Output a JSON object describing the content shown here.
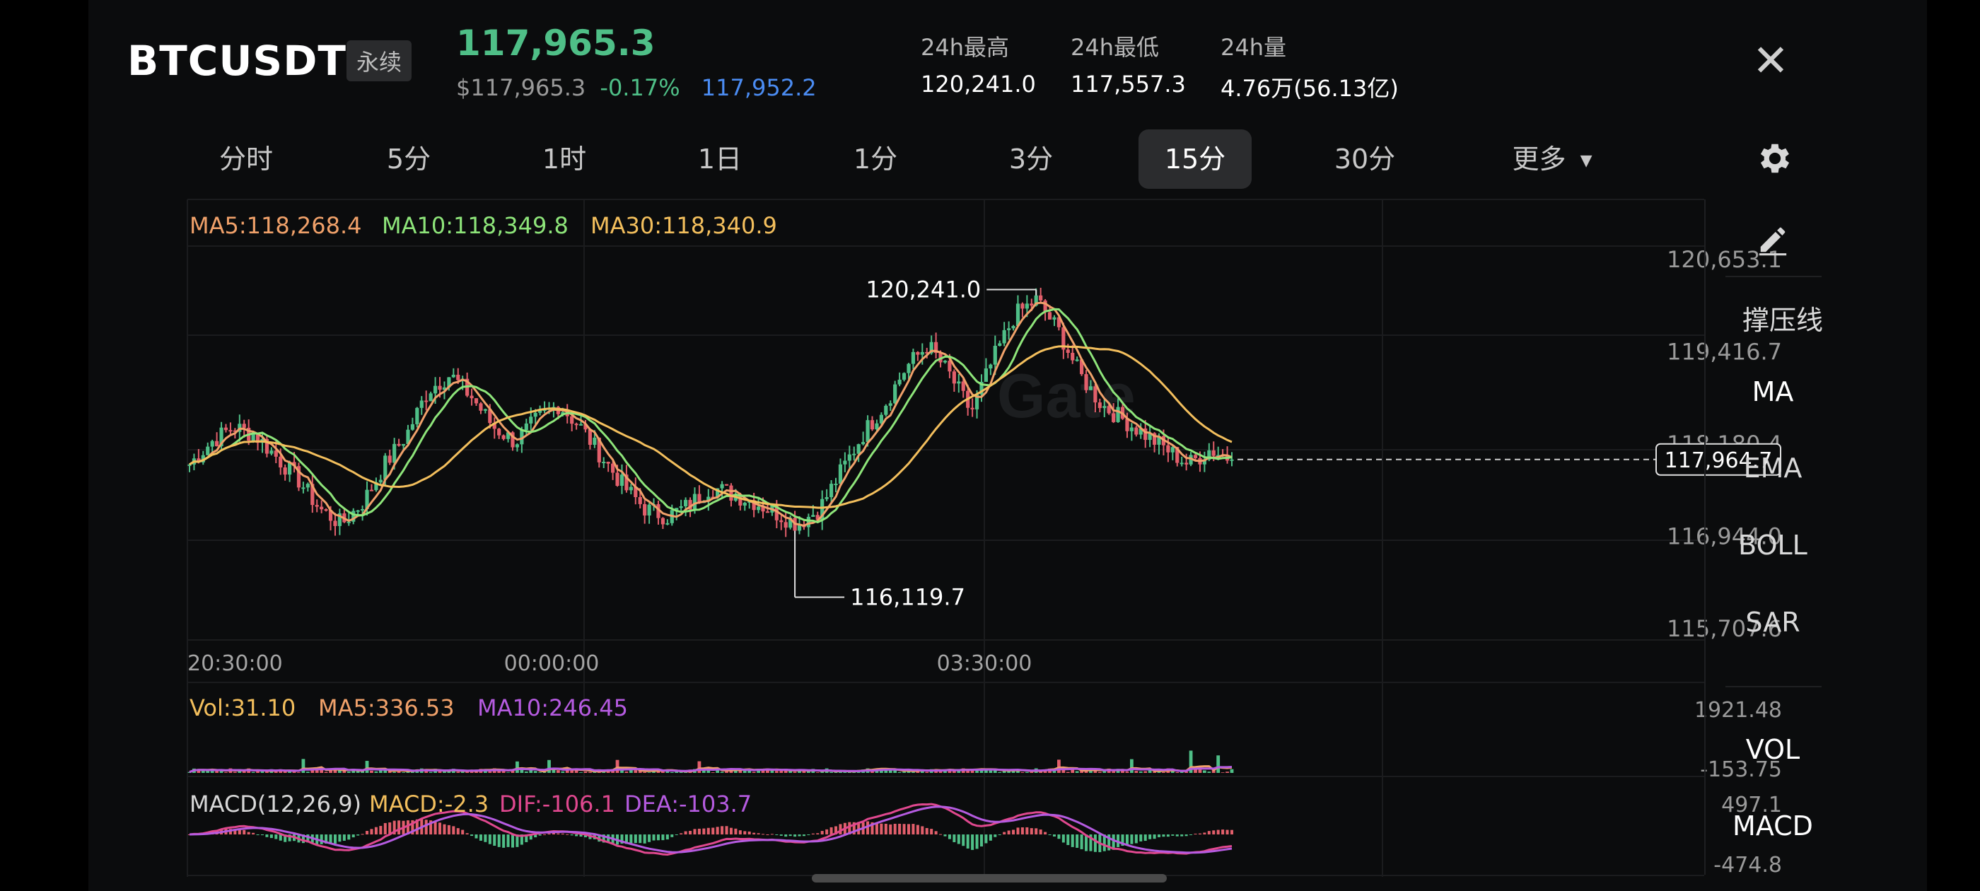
{
  "header": {
    "symbol": "BTCUSDT",
    "contract_type": "永续",
    "last_price": "117,965.3",
    "usd_price": "$117,965.3",
    "change_pct": "-0.17%",
    "mark_price": "117,952.2",
    "stats": [
      {
        "label": "24h最高",
        "value": "120,241.0"
      },
      {
        "label": "24h最低",
        "value": "117,557.3"
      },
      {
        "label": "24h量",
        "value": "4.76万(56.13亿)"
      }
    ],
    "close_icon": "close-icon"
  },
  "tabs": [
    {
      "label": "分时",
      "active": false
    },
    {
      "label": "5分",
      "active": false
    },
    {
      "label": "1时",
      "active": false
    },
    {
      "label": "1日",
      "active": false
    },
    {
      "label": "1分",
      "active": false
    },
    {
      "label": "3分",
      "active": false
    },
    {
      "label": "15分",
      "active": true
    },
    {
      "label": "30分",
      "active": false
    },
    {
      "label": "更多",
      "active": false
    }
  ],
  "settings_icon": "gear-icon",
  "ma_legend": {
    "ma5": "MA5:118,268.4",
    "ma10": "MA10:118,349.8",
    "ma30": "MA30:118,340.9"
  },
  "vol_legend": {
    "vol": "Vol:31.10",
    "ma5": "MA5:336.53",
    "ma10": "MA10:246.45"
  },
  "macd_legend": {
    "name": "MACD(12,26,9)",
    "macd": "MACD:-2.3",
    "dif": "DIF:-106.1",
    "dea": "DEA:-103.7"
  },
  "sidebar": {
    "draw_icon": "pencil-icon",
    "items": [
      "撑压线",
      "MA",
      "EMA",
      "BOLL",
      "SAR",
      "VOL",
      "MACD"
    ]
  },
  "watermark": "Gate",
  "colors": {
    "up": "#4fbf87",
    "down": "#e25f6b",
    "ma5": "#f0a16a",
    "ma10": "#8ee57a",
    "ma30": "#f3bf5d",
    "vol_ma10": "#b55be0",
    "dif": "#e0488f",
    "dea": "#b55be0",
    "mark": "#4b8cf2"
  },
  "chart_data": {
    "type": "candlestick",
    "interval": "15分",
    "y_axis_ticks": [
      "120,653.1",
      "119,416.7",
      "118,180.4",
      "116,944.0",
      "115,707.6"
    ],
    "ylim": [
      115707.6,
      120653.1
    ],
    "x_axis_ticks": [
      "20:30:00",
      "00:00:00",
      "03:30:00"
    ],
    "high_label": "120,241.0",
    "low_label": "116,119.7",
    "current_price_label": "117,964.7",
    "current_price": 117964.7,
    "close_path": [
      117900,
      118200,
      118400,
      118300,
      118000,
      117700,
      117300,
      117100,
      117400,
      117900,
      118300,
      118900,
      119100,
      118800,
      118400,
      118200,
      118500,
      118700,
      118400,
      118000,
      117600,
      117300,
      117200,
      117350,
      117600,
      117500,
      117400,
      117250,
      117100,
      117300,
      117800,
      118300,
      118700,
      119200,
      119500,
      119100,
      118600,
      119300,
      119900,
      120100,
      119700,
      119100,
      118700,
      118500,
      118300,
      118100,
      117900,
      118100,
      117965
    ],
    "volume": {
      "y_axis_ticks": [
        "1921.48",
        "-153.75"
      ]
    },
    "macd": {
      "y_axis_ticks": [
        "497.1",
        "-474.8"
      ]
    }
  }
}
